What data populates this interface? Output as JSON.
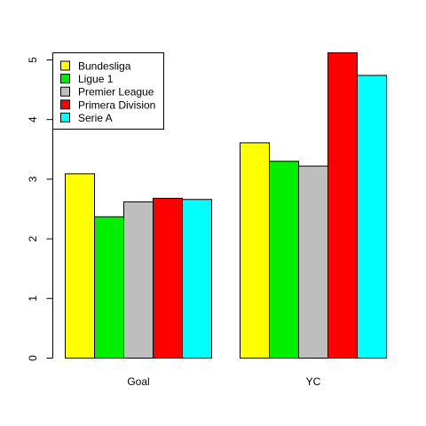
{
  "chart_data": {
    "type": "bar",
    "categories": [
      "Goal",
      "YC"
    ],
    "series": [
      {
        "name": "Bundesliga",
        "color": "#ffff00",
        "values": [
          3.09,
          3.61
        ]
      },
      {
        "name": "Ligue 1",
        "color": "#00ee00",
        "values": [
          2.37,
          3.3
        ]
      },
      {
        "name": "Premier League",
        "color": "#bebebe",
        "values": [
          2.62,
          3.22
        ]
      },
      {
        "name": "Primera Division",
        "color": "#ff0000",
        "values": [
          2.68,
          5.12
        ]
      },
      {
        "name": "Serie A",
        "color": "#00ffff",
        "values": [
          2.66,
          4.74
        ]
      }
    ],
    "yticks": [
      "0",
      "1",
      "2",
      "3",
      "4",
      "5"
    ],
    "ylim": [
      0,
      5.2
    ],
    "legend_position": "top-left",
    "grid": false
  }
}
